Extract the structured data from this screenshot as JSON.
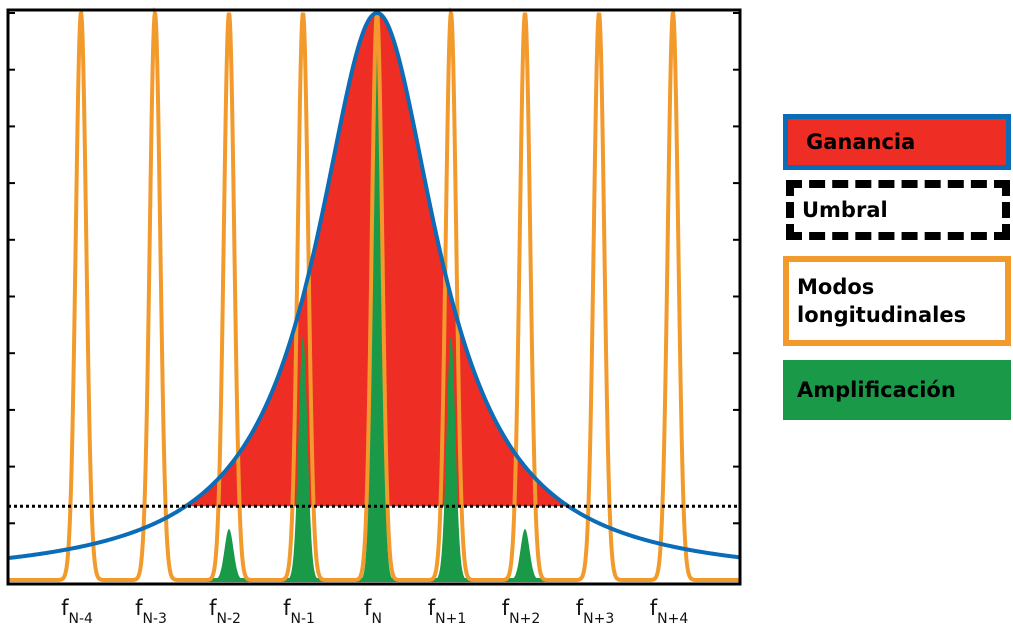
{
  "chart_data": {
    "type": "area",
    "title": "",
    "xlabel": "",
    "ylabel": "",
    "xlim": [
      -5,
      5
    ],
    "ylim": [
      0,
      1
    ],
    "grid": false,
    "legend_position": "right",
    "categories": [
      {
        "base": "f",
        "sub": "N-4"
      },
      {
        "base": "f",
        "sub": "N-3"
      },
      {
        "base": "f",
        "sub": "N-2"
      },
      {
        "base": "f",
        "sub": "N-1"
      },
      {
        "base": "f",
        "sub": "N"
      },
      {
        "base": "f",
        "sub": "N+1"
      },
      {
        "base": "f",
        "sub": "N+2"
      },
      {
        "base": "f",
        "sub": "N+3"
      },
      {
        "base": "f",
        "sub": "N+4"
      }
    ],
    "mode_positions": [
      -4,
      -3,
      -2,
      -1,
      0,
      1,
      2,
      3,
      4
    ],
    "gain_peak": 1.0,
    "gain_halfwidth": 1.0,
    "threshold": 0.13,
    "amplification_peaks": [
      {
        "x": -2,
        "y": 0.09
      },
      {
        "x": -1,
        "y": 0.43
      },
      {
        "x": 0,
        "y": 1.0
      },
      {
        "x": 1,
        "y": 0.43
      },
      {
        "x": 2,
        "y": 0.09
      }
    ],
    "series": [
      {
        "name": "Ganancia",
        "color": "#ee2d24",
        "edge_color": "#0b6cb7"
      },
      {
        "name": "Umbral",
        "color": "#000000"
      },
      {
        "name": "Modos longitudinales",
        "color": "#f39a2c"
      },
      {
        "name": "Amplificación",
        "color": "#1a9a48"
      }
    ]
  },
  "legend": {
    "gain": "Ganancia",
    "threshold": "Umbral",
    "modes_line1": "Modos",
    "modes_line2": "longitudinales",
    "amplification": "Amplificación"
  }
}
